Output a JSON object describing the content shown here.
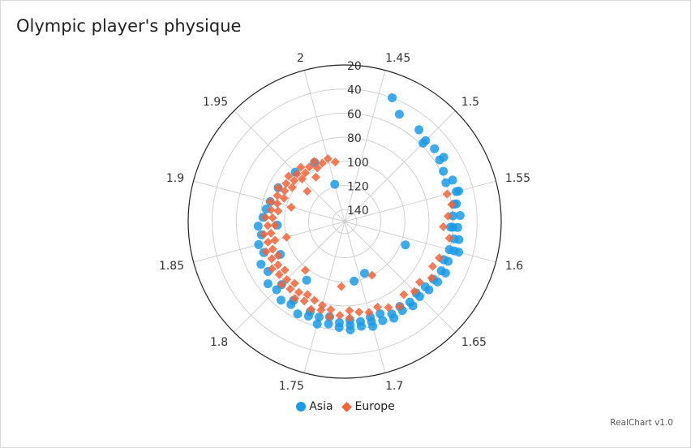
{
  "title": "Olympic player's physique",
  "credit": "RealChart v1.0",
  "colors": {
    "asia": "#1a9be8",
    "europe": "#f2643a",
    "grid": "#d0d0d0",
    "axis": "#222222"
  },
  "chart_data": {
    "type": "scatter",
    "polar": true,
    "title": "Olympic player's physique",
    "angular_axis": {
      "ticks": [
        "1.45",
        "1.5",
        "1.55",
        "1.6",
        "1.65",
        "1.7",
        "1.75",
        "1.8",
        "1.85",
        "1.9",
        "1.95",
        "2"
      ],
      "range": [
        1.425,
        2.025
      ]
    },
    "radial_axis": {
      "ticks": [
        "20",
        "40",
        "60",
        "80",
        "100",
        "120",
        "140"
      ],
      "range": [
        20,
        150
      ]
    },
    "legend": "bottom",
    "series": [
      {
        "name": "Asia",
        "marker": "circle",
        "points": [
          [
            1.46,
            40
          ],
          [
            1.47,
            50
          ],
          [
            1.49,
            52
          ],
          [
            1.5,
            58
          ],
          [
            1.5,
            55
          ],
          [
            1.51,
            54
          ],
          [
            1.52,
            52
          ],
          [
            1.52,
            56
          ],
          [
            1.53,
            58
          ],
          [
            1.54,
            54
          ],
          [
            1.54,
            60
          ],
          [
            1.55,
            52
          ],
          [
            1.55,
            54
          ],
          [
            1.56,
            56
          ],
          [
            1.56,
            58
          ],
          [
            1.57,
            60
          ],
          [
            1.57,
            54
          ],
          [
            1.58,
            56
          ],
          [
            1.58,
            60
          ],
          [
            1.58,
            62
          ],
          [
            1.59,
            54
          ],
          [
            1.59,
            58
          ],
          [
            1.6,
            52
          ],
          [
            1.6,
            56
          ],
          [
            1.6,
            60
          ],
          [
            1.61,
            58
          ],
          [
            1.61,
            62
          ],
          [
            1.62,
            56
          ],
          [
            1.62,
            60
          ],
          [
            1.63,
            58
          ],
          [
            1.63,
            62
          ],
          [
            1.64,
            60
          ],
          [
            1.64,
            64
          ],
          [
            1.65,
            62
          ],
          [
            1.65,
            66
          ],
          [
            1.66,
            60
          ],
          [
            1.66,
            64
          ],
          [
            1.67,
            62
          ],
          [
            1.67,
            66
          ],
          [
            1.68,
            60
          ],
          [
            1.68,
            64
          ],
          [
            1.69,
            62
          ],
          [
            1.69,
            68
          ],
          [
            1.7,
            60
          ],
          [
            1.7,
            64
          ],
          [
            1.7,
            68
          ],
          [
            1.71,
            62
          ],
          [
            1.71,
            66
          ],
          [
            1.72,
            60
          ],
          [
            1.72,
            64
          ],
          [
            1.72,
            68
          ],
          [
            1.73,
            62
          ],
          [
            1.73,
            66
          ],
          [
            1.74,
            64
          ],
          [
            1.74,
            70
          ],
          [
            1.75,
            62
          ],
          [
            1.75,
            68
          ],
          [
            1.76,
            66
          ],
          [
            1.76,
            70
          ],
          [
            1.77,
            64
          ],
          [
            1.78,
            68
          ],
          [
            1.78,
            72
          ],
          [
            1.79,
            66
          ],
          [
            1.8,
            70
          ],
          [
            1.8,
            76
          ],
          [
            1.81,
            68
          ],
          [
            1.82,
            74
          ],
          [
            1.83,
            72
          ],
          [
            1.84,
            78
          ],
          [
            1.85,
            76
          ],
          [
            1.86,
            80
          ],
          [
            1.87,
            78
          ],
          [
            1.88,
            82
          ],
          [
            1.89,
            84
          ],
          [
            1.9,
            86
          ],
          [
            1.92,
            88
          ],
          [
            1.95,
            92
          ],
          [
            1.98,
            95
          ],
          [
            2.0,
            118
          ],
          [
            1.61,
            96
          ],
          [
            1.69,
            104
          ],
          [
            1.71,
            100
          ],
          [
            1.78,
            92
          ],
          [
            1.83,
            90
          ],
          [
            1.87,
            94
          ]
        ]
      },
      {
        "name": "Europe",
        "marker": "diamond",
        "points": [
          [
            1.55,
            62
          ],
          [
            1.56,
            60
          ],
          [
            1.57,
            64
          ],
          [
            1.58,
            68
          ],
          [
            1.59,
            62
          ],
          [
            1.61,
            66
          ],
          [
            1.62,
            68
          ],
          [
            1.63,
            64
          ],
          [
            1.64,
            70
          ],
          [
            1.65,
            68
          ],
          [
            1.66,
            72
          ],
          [
            1.67,
            66
          ],
          [
            1.68,
            70
          ],
          [
            1.69,
            74
          ],
          [
            1.7,
            72
          ],
          [
            1.71,
            74
          ],
          [
            1.72,
            70
          ],
          [
            1.72,
            76
          ],
          [
            1.73,
            72
          ],
          [
            1.74,
            76
          ],
          [
            1.74,
            70
          ],
          [
            1.75,
            74
          ],
          [
            1.75,
            78
          ],
          [
            1.76,
            72
          ],
          [
            1.76,
            80
          ],
          [
            1.77,
            76
          ],
          [
            1.77,
            82
          ],
          [
            1.78,
            74
          ],
          [
            1.78,
            80
          ],
          [
            1.79,
            78
          ],
          [
            1.79,
            84
          ],
          [
            1.8,
            76
          ],
          [
            1.8,
            82
          ],
          [
            1.81,
            80
          ],
          [
            1.81,
            86
          ],
          [
            1.82,
            78
          ],
          [
            1.82,
            84
          ],
          [
            1.83,
            82
          ],
          [
            1.83,
            88
          ],
          [
            1.84,
            80
          ],
          [
            1.84,
            86
          ],
          [
            1.85,
            84
          ],
          [
            1.85,
            90
          ],
          [
            1.86,
            82
          ],
          [
            1.86,
            88
          ],
          [
            1.87,
            86
          ],
          [
            1.87,
            92
          ],
          [
            1.88,
            84
          ],
          [
            1.88,
            90
          ],
          [
            1.89,
            88
          ],
          [
            1.89,
            94
          ],
          [
            1.9,
            86
          ],
          [
            1.9,
            92
          ],
          [
            1.91,
            90
          ],
          [
            1.91,
            96
          ],
          [
            1.92,
            88
          ],
          [
            1.92,
            94
          ],
          [
            1.93,
            92
          ],
          [
            1.93,
            98
          ],
          [
            1.94,
            90
          ],
          [
            1.94,
            96
          ],
          [
            1.95,
            94
          ],
          [
            1.95,
            100
          ],
          [
            1.96,
            92
          ],
          [
            1.96,
            98
          ],
          [
            1.97,
            96
          ],
          [
            1.98,
            94
          ],
          [
            1.98,
            100
          ],
          [
            1.99,
            98
          ],
          [
            2.0,
            96
          ],
          [
            2.01,
            100
          ],
          [
            1.68,
            100
          ],
          [
            1.73,
            96
          ],
          [
            1.79,
            98
          ],
          [
            1.85,
            100
          ],
          [
            1.9,
            104
          ],
          [
            1.94,
            110
          ],
          [
            1.97,
            106
          ]
        ]
      }
    ]
  }
}
